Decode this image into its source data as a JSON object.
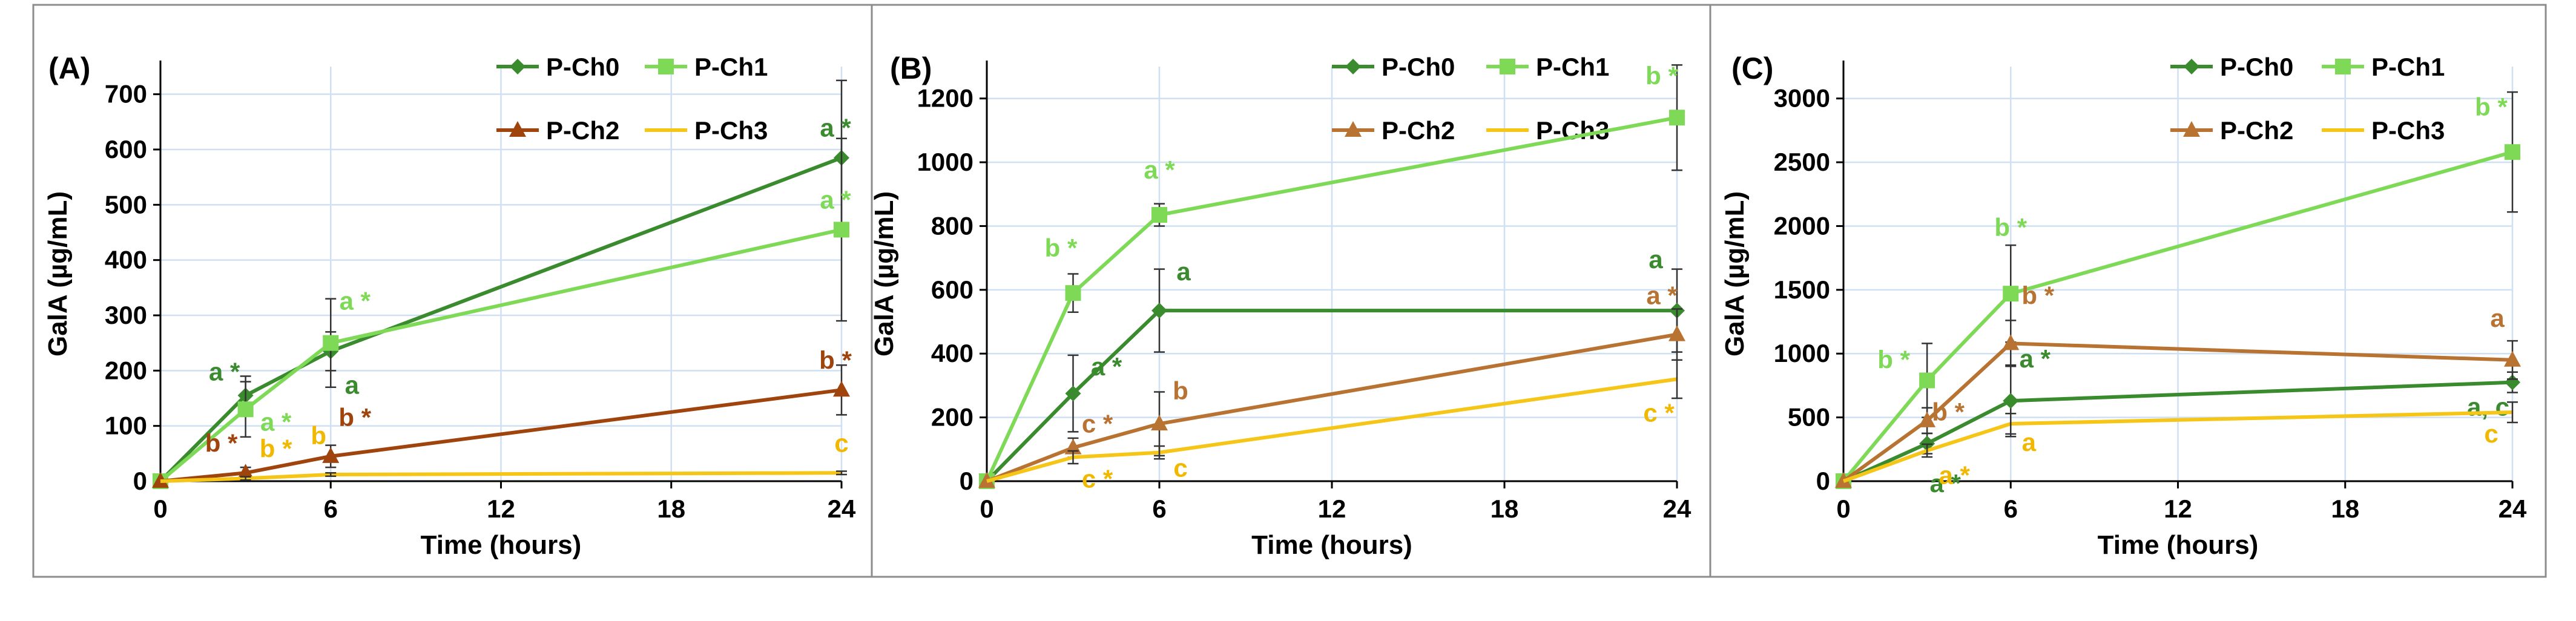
{
  "chart_data": [
    {
      "type": "line",
      "panel_label": "(A)",
      "xlabel": "Time (hours)",
      "ylabel": "GalA (µg/mL)",
      "xlim": [
        0,
        24
      ],
      "ylim": [
        0,
        750
      ],
      "xticks": [
        0,
        6,
        12,
        18,
        24
      ],
      "yticks": [
        0,
        100,
        200,
        300,
        400,
        500,
        600,
        700
      ],
      "x": [
        0,
        3,
        6,
        24
      ],
      "series": [
        {
          "name": "P-Ch0",
          "color": "#3A8A2E",
          "marker": "diamond",
          "values": [
            0,
            155,
            235,
            585
          ],
          "errors": [
            0,
            35,
            35,
            140
          ],
          "labels": [
            null,
            "a *",
            "a",
            "a *"
          ]
        },
        {
          "name": "P-Ch1",
          "color": "#7ED957",
          "marker": "square",
          "values": [
            0,
            130,
            250,
            455
          ],
          "errors": [
            0,
            50,
            80,
            165
          ],
          "labels": [
            null,
            "a *",
            "a *",
            "a *"
          ]
        },
        {
          "name": "P-Ch2",
          "color": "#A0440E",
          "marker": "triangle",
          "values": [
            0,
            15,
            45,
            165
          ],
          "errors": [
            0,
            10,
            20,
            45
          ],
          "labels": [
            null,
            "b *",
            "b *",
            "b *"
          ]
        },
        {
          "name": "P-Ch3",
          "color": "#F5C518",
          "marker": "none",
          "values": [
            0,
            5,
            12,
            15
          ],
          "errors": [
            0,
            3,
            3,
            3
          ],
          "labels": [
            null,
            "b *",
            "b",
            "c"
          ]
        }
      ]
    },
    {
      "type": "line",
      "panel_label": "(B)",
      "xlabel": "Time (hours)",
      "ylabel": "GalA (µg/mL)",
      "xlim": [
        0,
        24
      ],
      "ylim": [
        0,
        1300
      ],
      "xticks": [
        0,
        6,
        12,
        18,
        24
      ],
      "yticks": [
        0,
        200,
        400,
        600,
        800,
        1000,
        1200
      ],
      "x": [
        0,
        3,
        6,
        24
      ],
      "series": [
        {
          "name": "P-Ch0",
          "color": "#3A8A2E",
          "marker": "diamond",
          "values": [
            0,
            275,
            535,
            535
          ],
          "errors": [
            0,
            120,
            130,
            130
          ],
          "labels": [
            null,
            "a *",
            "a",
            "a"
          ]
        },
        {
          "name": "P-Ch1",
          "color": "#7ED957",
          "marker": "square",
          "values": [
            0,
            590,
            835,
            1140
          ],
          "errors": [
            0,
            60,
            35,
            165
          ],
          "labels": [
            null,
            "b *",
            "a *",
            "b *"
          ]
        },
        {
          "name": "P-Ch2",
          "color": "#B87333",
          "marker": "triangle",
          "values": [
            0,
            105,
            180,
            460
          ],
          "errors": [
            0,
            30,
            100,
            80
          ],
          "labels": [
            null,
            "c *",
            "b",
            "a *"
          ]
        },
        {
          "name": "P-Ch3",
          "color": "#F5C518",
          "marker": "none",
          "values": [
            0,
            75,
            90,
            320
          ],
          "errors": [
            0,
            20,
            20,
            60
          ],
          "labels": [
            null,
            "c *",
            "c",
            "c *"
          ]
        }
      ]
    },
    {
      "type": "line",
      "panel_label": "(C)",
      "xlabel": "Time (hours)",
      "ylabel": "GalA (µg/mL)",
      "xlim": [
        0,
        24
      ],
      "ylim": [
        0,
        3250
      ],
      "xticks": [
        0,
        6,
        12,
        18,
        24
      ],
      "yticks": [
        0,
        500,
        1000,
        1500,
        2000,
        2500,
        3000
      ],
      "x": [
        0,
        3,
        6,
        24
      ],
      "series": [
        {
          "name": "P-Ch0",
          "color": "#3A8A2E",
          "marker": "diamond",
          "values": [
            0,
            295,
            630,
            775
          ],
          "errors": [
            0,
            80,
            280,
            80
          ],
          "labels": [
            null,
            "a *",
            "a *",
            "a, c"
          ]
        },
        {
          "name": "P-Ch1",
          "color": "#7ED957",
          "marker": "square",
          "values": [
            0,
            790,
            1470,
            2580
          ],
          "errors": [
            0,
            290,
            380,
            470
          ],
          "labels": [
            null,
            "b *",
            "b *",
            "b *"
          ]
        },
        {
          "name": "P-Ch2",
          "color": "#B87333",
          "marker": "triangle",
          "values": [
            0,
            475,
            1080,
            950
          ],
          "errors": [
            0,
            100,
            180,
            150
          ],
          "labels": [
            null,
            "b *",
            "b *",
            "a"
          ]
        },
        {
          "name": "P-Ch3",
          "color": "#F5C518",
          "marker": "none",
          "values": [
            0,
            240,
            450,
            540
          ],
          "errors": [
            0,
            50,
            80,
            80
          ],
          "labels": [
            null,
            "a *",
            "a",
            "c"
          ]
        }
      ]
    }
  ]
}
